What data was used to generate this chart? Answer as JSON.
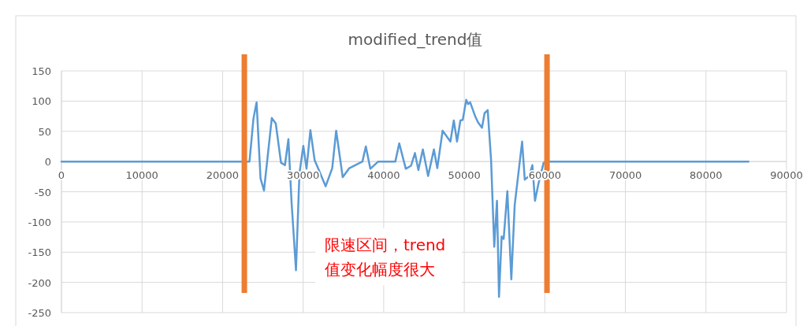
{
  "chart_data": {
    "type": "line",
    "title": "modified_trend值",
    "x": [
      0,
      5000,
      10000,
      15000,
      20000,
      22700,
      23340,
      23830,
      24220,
      24710,
      25140,
      26110,
      26600,
      27250,
      27740,
      28170,
      28560,
      29110,
      29540,
      30020,
      30420,
      30900,
      31430,
      31980,
      32790,
      33610,
      34100,
      34910,
      35730,
      37360,
      37780,
      38340,
      39320,
      40290,
      41440,
      41930,
      42740,
      43390,
      43880,
      44300,
      44860,
      45510,
      46230,
      46650,
      47310,
      48280,
      48700,
      49100,
      49520,
      49810,
      50240,
      50470,
      50730,
      51380,
      51700,
      52200,
      52520,
      52910,
      53330,
      53720,
      54060,
      54310,
      54640,
      54890,
      55350,
      55840,
      56260,
      57180,
      57510,
      58060,
      58450,
      58780,
      59200,
      59850,
      60330,
      65000,
      70000,
      75000,
      80000,
      85280
    ],
    "series": [
      {
        "color": "#5b9bd5",
        "values": [
          0,
          0,
          0,
          0,
          0,
          0,
          0,
          71,
          98,
          -28,
          -48,
          72,
          63,
          -2,
          -6,
          37,
          -67,
          -180,
          -20,
          26,
          -12,
          52,
          2,
          -15,
          -41,
          -11,
          51,
          -26,
          -11,
          0,
          25,
          -12,
          0,
          0,
          0,
          30,
          -12,
          -7,
          14,
          -14,
          20,
          -24,
          20,
          -11,
          51,
          33,
          68,
          33,
          68,
          69,
          102,
          95,
          98,
          74,
          65,
          56,
          80,
          85,
          2,
          -141,
          -65,
          -224,
          -124,
          -128,
          -49,
          -195,
          -72,
          33,
          -30,
          -24,
          -6,
          -65,
          -37,
          -2,
          0,
          0,
          0,
          0,
          0,
          0
        ]
      }
    ],
    "xlim": [
      0,
      90000
    ],
    "xticks": [
      0,
      10000,
      20000,
      30000,
      40000,
      50000,
      60000,
      70000,
      80000,
      90000
    ],
    "ylim": [
      -250,
      150
    ],
    "yticks": [
      -250,
      -200,
      -150,
      -100,
      -50,
      0,
      50,
      100,
      150
    ],
    "grid": true,
    "marker": "none",
    "line_style": "solid",
    "ref_lines": [
      {
        "axis": "x",
        "value": 22700,
        "color": "#ed7d31"
      },
      {
        "axis": "x",
        "value": 60270,
        "color": "#ed7d31"
      }
    ],
    "annotations": [
      "限速区间，trend\n值变化幅度很大"
    ]
  }
}
